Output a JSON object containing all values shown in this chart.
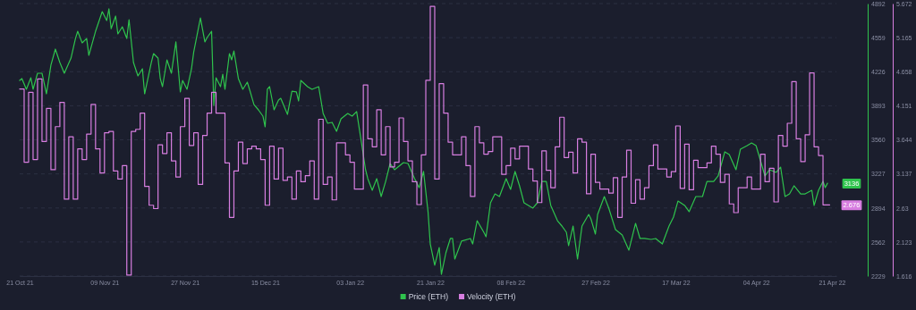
{
  "chart_data": {
    "type": "line",
    "xlim": [
      "2021-10-21",
      "2022-04-22"
    ],
    "xticks": [
      {
        "value": "2021-10-21",
        "label": "21 Oct 21"
      },
      {
        "value": "2021-11-09",
        "label": "09 Nov 21"
      },
      {
        "value": "2021-11-27",
        "label": "27 Nov 21"
      },
      {
        "value": "2021-12-15",
        "label": "15 Dec 21"
      },
      {
        "value": "2022-01-03",
        "label": "03 Jan 22"
      },
      {
        "value": "2022-01-21",
        "label": "21 Jan 22"
      },
      {
        "value": "2022-02-08",
        "label": "08 Feb 22"
      },
      {
        "value": "2022-02-27",
        "label": "27 Feb 22"
      },
      {
        "value": "2022-03-17",
        "label": "17 Mar 22"
      },
      {
        "value": "2022-04-04",
        "label": "04 Apr 22"
      },
      {
        "value": "2022-04-21",
        "label": "21 Apr 22"
      }
    ],
    "ylim": [
      2229,
      4892
    ],
    "yticks": [
      2229,
      2562,
      2894,
      3227,
      3560,
      3893,
      4226,
      4559,
      4892
    ],
    "y2lim": [
      1.616,
      5.672
    ],
    "y2ticks": [
      1.616,
      2.123,
      2.63,
      3.137,
      3.644,
      4.151,
      4.658,
      5.165,
      5.672
    ],
    "grid": "y",
    "legend": "bottom",
    "marker": "none",
    "annotations": [
      "3136",
      "2.676"
    ],
    "series": [
      {
        "name": "Price (ETH)",
        "color": "#2fc34d",
        "x": [
          "2021-10-21",
          "2021-10-21T12:00",
          "2021-10-22T12:00",
          "2021-10-23T12:00",
          "2021-10-24",
          "2021-10-25",
          "2021-10-26",
          "2021-10-27",
          "2021-10-28",
          "2021-10-29",
          "2021-10-30",
          "2021-10-31",
          "2021-11-01T12:00",
          "2021-11-02T12:00",
          "2021-11-03",
          "2021-11-04",
          "2021-11-05",
          "2021-11-05T12:00",
          "2021-11-07",
          "2021-11-08T12:00",
          "2021-11-09T12:00",
          "2021-11-10",
          "2021-11-10T12:00",
          "2021-11-11T12:00",
          "2021-11-12",
          "2021-11-13",
          "2021-11-14",
          "2021-11-14T12:00",
          "2021-11-15T12:00",
          "2021-11-16T12:00",
          "2021-11-17T12:00",
          "2021-11-18",
          "2021-11-19T12:00",
          "2021-11-20",
          "2021-11-21",
          "2021-11-21T12:00",
          "2021-11-22",
          "2021-11-23",
          "2021-11-24",
          "2021-11-25",
          "2021-11-26",
          "2021-11-26T12:00",
          "2021-11-27T12:00",
          "2021-11-28T12:00",
          "2021-11-29",
          "2021-11-30T12:00",
          "2021-12-01T12:00",
          "2021-12-02",
          "2021-12-03",
          "2021-12-03T12:00",
          "2021-12-04",
          "2021-12-05",
          "2021-12-05T12:00",
          "2021-12-06",
          "2021-12-07",
          "2021-12-07T12:00",
          "2021-12-08",
          "2021-12-09",
          "2021-12-10",
          "2021-12-11",
          "2021-12-11T12:00",
          "2021-12-12T12:00",
          "2021-12-13T12:00",
          "2021-12-14T12:00",
          "2021-12-15",
          "2021-12-15T12:00",
          "2021-12-16",
          "2021-12-17",
          "2021-12-18",
          "2021-12-18T12:00",
          "2021-12-20",
          "2021-12-21",
          "2021-12-22",
          "2021-12-22T12:00",
          "2021-12-23",
          "2021-12-24T12:00",
          "2021-12-25T12:00",
          "2021-12-27",
          "2021-12-28",
          "2021-12-29",
          "2021-12-30",
          "2021-12-31",
          "2022-01-01",
          "2022-01-02T12:00",
          "2022-01-03T12:00",
          "2022-01-04T12:00",
          "2022-01-05T12:00",
          "2022-01-06T12:00",
          "2022-01-07",
          "2022-01-08",
          "2022-01-09",
          "2022-01-10",
          "2022-01-11",
          "2022-01-12",
          "2022-01-13",
          "2022-01-15",
          "2022-01-16",
          "2022-01-17T12:00",
          "2022-01-18T12:00",
          "2022-01-19T12:00",
          "2022-01-20T12:00",
          "2022-01-21",
          "2022-01-22",
          "2022-01-23",
          "2022-01-23T12:00",
          "2022-01-24T12:00",
          "2022-01-25T12:00",
          "2022-01-26",
          "2022-01-26T12:00",
          "2022-01-28",
          "2022-01-30",
          "2022-01-30T12:00",
          "2022-01-31T12:00",
          "2022-02-02",
          "2022-02-02T12:00",
          "2022-02-03T12:00",
          "2022-02-04T12:00",
          "2022-02-05T12:00",
          "2022-02-07",
          "2022-02-08",
          "2022-02-09",
          "2022-02-10",
          "2022-02-11",
          "2022-02-13",
          "2022-02-14",
          "2022-02-15",
          "2022-02-16",
          "2022-02-17",
          "2022-02-18T12:00",
          "2022-02-19T12:00",
          "2022-02-20T12:00",
          "2022-02-21",
          "2022-02-22",
          "2022-02-23",
          "2022-02-24",
          "2022-02-25T12:00",
          "2022-02-26",
          "2022-02-27",
          "2022-02-27T12:00",
          "2022-03-01",
          "2022-03-02",
          "2022-03-03T12:00",
          "2022-03-05",
          "2022-03-06T12:00",
          "2022-03-08",
          "2022-03-09",
          "2022-03-10",
          "2022-03-11T12:00",
          "2022-03-12T12:00",
          "2022-03-14",
          "2022-03-15T12:00",
          "2022-03-16T12:00",
          "2022-03-17T12:00",
          "2022-03-19",
          "2022-03-20",
          "2022-03-21T12:00",
          "2022-03-23",
          "2022-03-24",
          "2022-03-25T12:00",
          "2022-03-26T12:00",
          "2022-03-28",
          "2022-03-29",
          "2022-03-30T12:00",
          "2022-03-31T12:00",
          "2022-04-02",
          "2022-04-03",
          "2022-04-04",
          "2022-04-05",
          "2022-04-06",
          "2022-04-07",
          "2022-04-08T12:00",
          "2022-04-09T12:00",
          "2022-04-10T12:00",
          "2022-04-11T12:00",
          "2022-04-12T12:00",
          "2022-04-14",
          "2022-04-15",
          "2022-04-16T12:00",
          "2022-04-17",
          "2022-04-18",
          "2022-04-19",
          "2022-04-19T12:00",
          "2022-04-20"
        ],
        "values": [
          4141,
          4159,
          4054,
          4167,
          4054,
          4211,
          4211,
          4010,
          4290,
          4447,
          4316,
          4211,
          4359,
          4551,
          4621,
          4508,
          4551,
          4386,
          4621,
          4813,
          4726,
          4840,
          4647,
          4770,
          4595,
          4665,
          4551,
          4735,
          4316,
          4185,
          4255,
          4010,
          4316,
          4403,
          4359,
          4159,
          4080,
          4342,
          4211,
          4517,
          4028,
          4141,
          4054,
          4255,
          4420,
          4752,
          4517,
          4560,
          4621,
          3897,
          4167,
          4080,
          4202,
          4054,
          4403,
          4342,
          4429,
          4159,
          4054,
          4124,
          4054,
          3905,
          3853,
          3792,
          3687,
          4054,
          4080,
          3853,
          3949,
          3966,
          3809,
          4036,
          4028,
          3940,
          4141,
          4080,
          4054,
          4080,
          3818,
          3722,
          3731,
          3643,
          3766,
          3818,
          3792,
          3836,
          3556,
          3268,
          3181,
          3067,
          3181,
          3006,
          3154,
          3329,
          3268,
          3338,
          3329,
          3181,
          3093,
          3251,
          2858,
          2543,
          2334,
          2508,
          2246,
          2456,
          2596,
          2596,
          2395,
          2570,
          2596,
          2543,
          2770,
          2657,
          2613,
          2945,
          3032,
          3006,
          3181,
          3076,
          3251,
          3111,
          2945,
          2893,
          2945,
          3154,
          3154,
          2919,
          2770,
          2718,
          2657,
          2526,
          2718,
          2395,
          2718,
          2831,
          2788,
          2639,
          2831,
          3006,
          2893,
          2683,
          2631,
          2482,
          2744,
          2596,
          2596,
          2587,
          2596,
          2543,
          2718,
          2805,
          2962,
          2919,
          2858,
          3006,
          3006,
          3154,
          3154,
          3207,
          3443,
          3416,
          3268,
          3469,
          3504,
          3530,
          3504,
          3355,
          3207,
          3268,
          3242,
          3294,
          3006,
          3032,
          3111,
          3032,
          3032,
          3067,
          2919,
          3067,
          3154,
          3093,
          3136
        ]
      },
      {
        "name": "Velocity (ETH)",
        "type": "step",
        "axis": "y2",
        "color": "#d77ee0",
        "x": [
          "2021-10-21",
          "2021-10-22",
          "2021-10-23",
          "2021-10-24",
          "2021-10-25",
          "2021-10-26",
          "2021-10-27",
          "2021-10-28",
          "2021-10-29",
          "2021-10-30",
          "2021-10-31",
          "2021-11-01",
          "2021-11-02",
          "2021-11-03",
          "2021-11-04",
          "2021-11-05",
          "2021-11-06",
          "2021-11-07",
          "2021-11-08",
          "2021-11-09",
          "2021-11-10",
          "2021-11-11",
          "2021-11-12",
          "2021-11-13",
          "2021-11-14",
          "2021-11-15",
          "2021-11-16",
          "2021-11-17",
          "2021-11-18",
          "2021-11-19",
          "2021-11-20",
          "2021-11-21",
          "2021-11-22",
          "2021-11-23",
          "2021-11-24",
          "2021-11-25",
          "2021-11-26",
          "2021-11-27",
          "2021-11-28",
          "2021-11-29",
          "2021-11-30",
          "2021-12-01",
          "2021-12-02",
          "2021-12-03",
          "2021-12-04",
          "2021-12-06",
          "2021-12-07",
          "2021-12-08",
          "2021-12-09",
          "2021-12-10",
          "2021-12-11",
          "2021-12-12",
          "2021-12-13",
          "2021-12-14",
          "2021-12-15",
          "2021-12-16",
          "2021-12-17",
          "2021-12-18",
          "2021-12-19",
          "2021-12-20",
          "2021-12-21",
          "2021-12-22",
          "2021-12-23",
          "2021-12-24",
          "2021-12-25",
          "2021-12-26",
          "2021-12-27",
          "2021-12-28",
          "2021-12-29",
          "2021-12-30",
          "2021-12-31",
          "2022-01-02",
          "2022-01-03",
          "2022-01-04",
          "2022-01-06",
          "2022-01-07",
          "2022-01-08",
          "2022-01-09",
          "2022-01-10",
          "2022-01-11",
          "2022-01-12",
          "2022-01-13",
          "2022-01-14",
          "2022-01-15",
          "2022-01-16",
          "2022-01-17",
          "2022-01-18",
          "2022-01-19",
          "2022-01-20",
          "2022-01-21",
          "2022-01-22",
          "2022-01-23",
          "2022-01-24",
          "2022-01-25",
          "2022-01-26",
          "2022-01-28",
          "2022-01-29",
          "2022-01-30",
          "2022-01-31",
          "2022-02-01",
          "2022-02-02",
          "2022-02-03",
          "2022-02-04",
          "2022-02-06",
          "2022-02-07",
          "2022-02-08",
          "2022-02-09",
          "2022-02-10",
          "2022-02-12",
          "2022-02-13",
          "2022-02-14",
          "2022-02-15",
          "2022-02-16",
          "2022-02-17",
          "2022-02-18",
          "2022-02-19",
          "2022-02-20",
          "2022-02-21",
          "2022-02-22",
          "2022-02-23",
          "2022-02-24",
          "2022-02-25",
          "2022-02-26",
          "2022-02-27",
          "2022-02-28",
          "2022-03-02",
          "2022-03-03",
          "2022-03-04",
          "2022-03-05",
          "2022-03-06",
          "2022-03-07",
          "2022-03-08",
          "2022-03-09",
          "2022-03-10",
          "2022-03-11",
          "2022-03-12",
          "2022-03-13",
          "2022-03-15",
          "2022-03-16",
          "2022-03-17",
          "2022-03-18",
          "2022-03-19",
          "2022-03-20",
          "2022-03-21",
          "2022-03-22",
          "2022-03-24",
          "2022-03-25",
          "2022-03-26",
          "2022-03-27",
          "2022-03-28",
          "2022-03-29",
          "2022-03-30",
          "2022-03-31",
          "2022-04-02",
          "2022-04-03",
          "2022-04-05",
          "2022-04-06",
          "2022-04-07",
          "2022-04-08",
          "2022-04-09",
          "2022-04-10",
          "2022-04-11",
          "2022-04-12",
          "2022-04-13",
          "2022-04-14",
          "2022-04-15",
          "2022-04-16",
          "2022-04-17",
          "2022-04-18",
          "2022-04-19",
          "2022-04-20T12:00"
        ],
        "values": [
          4.4,
          3.31,
          4.35,
          3.35,
          4.55,
          3.62,
          4.11,
          3.2,
          3.84,
          4.2,
          2.76,
          3.69,
          2.76,
          3.51,
          3.35,
          3.73,
          4.17,
          3.51,
          3.15,
          3.75,
          3.77,
          3.18,
          3.06,
          3.26,
          1.63,
          3.77,
          3.8,
          4.04,
          2.95,
          2.67,
          2.62,
          3.57,
          3.44,
          3.75,
          3.33,
          3.09,
          3.84,
          4.26,
          3.56,
          3.75,
          2.98,
          3.71,
          4.04,
          4.35,
          4.04,
          3.3,
          2.49,
          3.18,
          3.61,
          3.29,
          3.51,
          3.55,
          3.51,
          3.35,
          2.67,
          3.55,
          3.06,
          3.52,
          3.04,
          3.09,
          2.76,
          3.18,
          3.02,
          3.11,
          3.33,
          2.76,
          3.95,
          2.98,
          3.09,
          2.75,
          3.6,
          3.42,
          3.31,
          2.91,
          4.46,
          3.66,
          3.54,
          4.09,
          3.42,
          3.84,
          3.24,
          3.31,
          3.97,
          3.62,
          3.33,
          3.02,
          2.68,
          3.42,
          4.53,
          5.63,
          3.06,
          4.48,
          4.04,
          3.61,
          3.42,
          3.69,
          3.26,
          2.8,
          3.84,
          3.6,
          3.43,
          3.47,
          3.69,
          3.13,
          3.26,
          3.52,
          3.36,
          3.55,
          3.21,
          3.03,
          2.71,
          3.48,
          3.19,
          2.93,
          3.54,
          3.98,
          3.38,
          3.46,
          3.15,
          3.66,
          3.61,
          2.84,
          3.43,
          3.01,
          2.91,
          2.85,
          3.08,
          2.49,
          3.09,
          3.49,
          2.7,
          3.05,
          2.76,
          2.93,
          3.26,
          3.57,
          3.21,
          3.09,
          3.17,
          3.85,
          2.92,
          3.58,
          2.9,
          3.34,
          3.23,
          3.3,
          3.55,
          3.43,
          3.01,
          3.13,
          2.69,
          2.56,
          2.93,
          3.09,
          2.91,
          3.43,
          3.02,
          3.22,
          2.72,
          3.71,
          3.55,
          3.89,
          4.51,
          3.66,
          3.32,
          3.72,
          4.64,
          3.54,
          3.41,
          2.676,
          2.676
        ]
      }
    ]
  }
}
